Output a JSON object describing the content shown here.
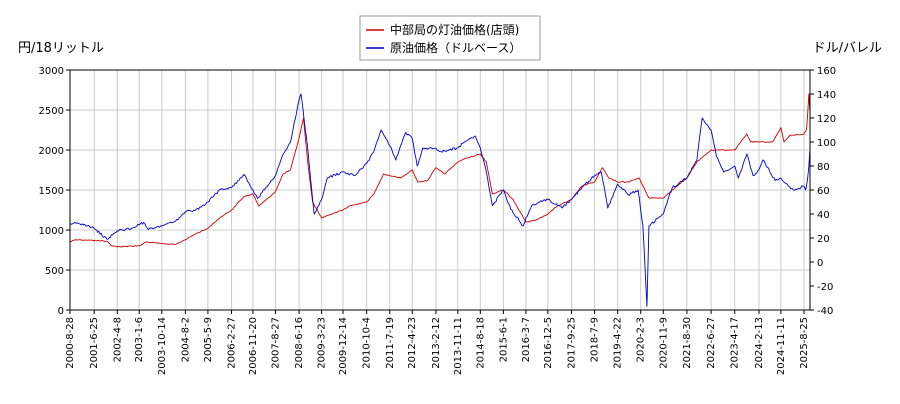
{
  "chart_data": {
    "type": "line",
    "title": "",
    "left_axis_label": "円/18リットル",
    "right_axis_label": "ドル/バレル",
    "ylim_left": [
      0,
      3000
    ],
    "ylim_right": [
      -40,
      160
    ],
    "left_ticks": [
      "0",
      "500",
      "1000",
      "1500",
      "2000",
      "2500",
      "3000"
    ],
    "right_ticks": [
      "-40",
      "-20",
      "0",
      "20",
      "40",
      "60",
      "80",
      "100",
      "120",
      "140",
      "160"
    ],
    "x_ticks": [
      "2000-8-28",
      "2001-6-25",
      "2002-4-8",
      "2003-1-6",
      "2003-10-14",
      "2004-8-2",
      "2005-5-9",
      "2006-2-27",
      "2006-11-20",
      "2007-8-27",
      "2008-6-16",
      "2009-3-23",
      "2009-12-14",
      "2010-10-4",
      "2011-7-19",
      "2012-4-23",
      "2013-2-12",
      "2013-11-11",
      "2014-8-18",
      "2015-6-1",
      "2016-3-7",
      "2016-12-5",
      "2017-9-25",
      "2018-7-9",
      "2019-4-22",
      "2020-2-3",
      "2020-11-9",
      "2021-8-30",
      "2022-6-27",
      "2023-4-17",
      "2024-2-13",
      "2024-11-11",
      "2025-8-25"
    ],
    "grid": true,
    "legend_position": "top-center",
    "series": [
      {
        "name": "中部局の灯油価格(店頭)",
        "axis": "left",
        "color": "#cc0000",
        "points": [
          [
            "2000-8-28",
            850
          ],
          [
            "2000-11-1",
            880
          ],
          [
            "2001-6-25",
            870
          ],
          [
            "2001-12-1",
            860
          ],
          [
            "2002-2-1",
            800
          ],
          [
            "2002-4-8",
            790
          ],
          [
            "2002-10-1",
            800
          ],
          [
            "2003-1-6",
            800
          ],
          [
            "2003-4-1",
            850
          ],
          [
            "2003-10-14",
            830
          ],
          [
            "2004-4-1",
            820
          ],
          [
            "2004-8-2",
            880
          ],
          [
            "2004-12-1",
            950
          ],
          [
            "2005-5-9",
            1020
          ],
          [
            "2005-10-1",
            1150
          ],
          [
            "2006-2-27",
            1250
          ],
          [
            "2006-8-1",
            1420
          ],
          [
            "2006-11-20",
            1450
          ],
          [
            "2007-2-1",
            1300
          ],
          [
            "2007-6-1",
            1400
          ],
          [
            "2007-8-27",
            1480
          ],
          [
            "2007-12-1",
            1700
          ],
          [
            "2008-3-1",
            1750
          ],
          [
            "2008-6-16",
            2150
          ],
          [
            "2008-8-10",
            2400
          ],
          [
            "2008-10-1",
            1850
          ],
          [
            "2008-12-1",
            1350
          ],
          [
            "2009-3-23",
            1150
          ],
          [
            "2009-6-1",
            1180
          ],
          [
            "2009-12-14",
            1250
          ],
          [
            "2010-3-1",
            1300
          ],
          [
            "2010-10-4",
            1350
          ],
          [
            "2011-1-1",
            1450
          ],
          [
            "2011-5-1",
            1700
          ],
          [
            "2011-7-19",
            1680
          ],
          [
            "2011-12-1",
            1650
          ],
          [
            "2012-4-23",
            1750
          ],
          [
            "2012-7-1",
            1600
          ],
          [
            "2012-11-1",
            1620
          ],
          [
            "2013-2-12",
            1780
          ],
          [
            "2013-6-1",
            1700
          ],
          [
            "2013-11-11",
            1850
          ],
          [
            "2014-2-1",
            1890
          ],
          [
            "2014-8-18",
            1950
          ],
          [
            "2014-11-1",
            1850
          ],
          [
            "2015-1-15",
            1450
          ],
          [
            "2015-6-1",
            1500
          ],
          [
            "2015-10-1",
            1380
          ],
          [
            "2016-3-7",
            1100
          ],
          [
            "2016-7-1",
            1120
          ],
          [
            "2016-12-5",
            1200
          ],
          [
            "2017-4-1",
            1300
          ],
          [
            "2017-9-25",
            1380
          ],
          [
            "2018-2-1",
            1550
          ],
          [
            "2018-7-9",
            1600
          ],
          [
            "2018-10-15",
            1780
          ],
          [
            "2019-1-1",
            1650
          ],
          [
            "2019-4-22",
            1600
          ],
          [
            "2019-9-1",
            1600
          ],
          [
            "2020-1-15",
            1650
          ],
          [
            "2020-3-1",
            1550
          ],
          [
            "2020-5-15",
            1400
          ],
          [
            "2020-11-9",
            1400
          ],
          [
            "2021-3-1",
            1500
          ],
          [
            "2021-8-30",
            1650
          ],
          [
            "2022-1-1",
            1850
          ],
          [
            "2022-6-27",
            2000
          ],
          [
            "2022-12-1",
            2000
          ],
          [
            "2023-4-17",
            2000
          ],
          [
            "2023-9-15",
            2200
          ],
          [
            "2023-11-1",
            2100
          ],
          [
            "2024-2-13",
            2100
          ],
          [
            "2024-8-1",
            2100
          ],
          [
            "2024-11-11",
            2280
          ],
          [
            "2024-12-20",
            2100
          ],
          [
            "2025-3-1",
            2180
          ],
          [
            "2025-8-25",
            2200
          ],
          [
            "2025-9-25",
            2250
          ],
          [
            "2025-10-10",
            2450
          ],
          [
            "2025-10-25",
            2700
          ],
          [
            "2025-11-5",
            2500
          ]
        ]
      },
      {
        "name": "原油価格（ドルベース）",
        "axis": "right",
        "color": "#0000cc",
        "points": [
          [
            "2000-8-28",
            32
          ],
          [
            "2000-11-1",
            33
          ],
          [
            "2001-6-25",
            28
          ],
          [
            "2001-12-1",
            19
          ],
          [
            "2002-4-8",
            26
          ],
          [
            "2002-10-1",
            28
          ],
          [
            "2003-1-6",
            31
          ],
          [
            "2003-3-1",
            33
          ],
          [
            "2003-5-1",
            27
          ],
          [
            "2003-10-14",
            30
          ],
          [
            "2004-4-1",
            34
          ],
          [
            "2004-8-2",
            42
          ],
          [
            "2004-12-1",
            43
          ],
          [
            "2005-5-9",
            50
          ],
          [
            "2005-10-1",
            60
          ],
          [
            "2006-2-27",
            62
          ],
          [
            "2006-8-1",
            73
          ],
          [
            "2006-11-20",
            60
          ],
          [
            "2007-1-15",
            53
          ],
          [
            "2007-8-27",
            72
          ],
          [
            "2007-12-1",
            90
          ],
          [
            "2008-3-1",
            100
          ],
          [
            "2008-6-16",
            135
          ],
          [
            "2008-7-10",
            140
          ],
          [
            "2008-10-1",
            95
          ],
          [
            "2008-12-20",
            40
          ],
          [
            "2009-3-23",
            52
          ],
          [
            "2009-6-1",
            70
          ],
          [
            "2009-12-14",
            75
          ],
          [
            "2010-5-1",
            72
          ],
          [
            "2010-10-4",
            82
          ],
          [
            "2011-1-1",
            92
          ],
          [
            "2011-4-1",
            110
          ],
          [
            "2011-7-19",
            97
          ],
          [
            "2011-10-1",
            85
          ],
          [
            "2012-2-1",
            108
          ],
          [
            "2012-4-23",
            103
          ],
          [
            "2012-6-25",
            80
          ],
          [
            "2012-9-1",
            95
          ],
          [
            "2013-2-12",
            95
          ],
          [
            "2013-4-1",
            92
          ],
          [
            "2013-11-11",
            95
          ],
          [
            "2014-2-1",
            100
          ],
          [
            "2014-6-15",
            105
          ],
          [
            "2014-8-18",
            95
          ],
          [
            "2014-11-1",
            75
          ],
          [
            "2015-1-15",
            47
          ],
          [
            "2015-6-1",
            60
          ],
          [
            "2015-9-1",
            44
          ],
          [
            "2016-2-1",
            30
          ],
          [
            "2016-3-7",
            37
          ],
          [
            "2016-6-1",
            48
          ],
          [
            "2016-12-5",
            52
          ],
          [
            "2017-6-1",
            45
          ],
          [
            "2017-9-25",
            52
          ],
          [
            "2018-2-1",
            62
          ],
          [
            "2018-7-9",
            72
          ],
          [
            "2018-10-1",
            75
          ],
          [
            "2018-12-20",
            45
          ],
          [
            "2019-4-22",
            65
          ],
          [
            "2019-9-1",
            56
          ],
          [
            "2020-1-1",
            60
          ],
          [
            "2020-3-1",
            30
          ],
          [
            "2020-4-20",
            -37
          ],
          [
            "2020-5-15",
            30
          ],
          [
            "2020-11-9",
            40
          ],
          [
            "2021-3-1",
            62
          ],
          [
            "2021-8-30",
            70
          ],
          [
            "2022-1-1",
            85
          ],
          [
            "2022-3-8",
            120
          ],
          [
            "2022-6-27",
            110
          ],
          [
            "2022-9-1",
            88
          ],
          [
            "2022-12-1",
            75
          ],
          [
            "2023-4-17",
            80
          ],
          [
            "2023-6-1",
            70
          ],
          [
            "2023-9-15",
            90
          ],
          [
            "2023-12-1",
            72
          ],
          [
            "2024-2-13",
            77
          ],
          [
            "2024-4-1",
            85
          ],
          [
            "2024-9-1",
            68
          ],
          [
            "2024-11-11",
            70
          ],
          [
            "2025-4-15",
            60
          ],
          [
            "2025-8-25",
            63
          ],
          [
            "2025-9-15",
            60
          ],
          [
            "2025-10-10",
            70
          ],
          [
            "2025-10-25",
            80
          ],
          [
            "2025-11-5",
            92
          ]
        ]
      }
    ]
  }
}
